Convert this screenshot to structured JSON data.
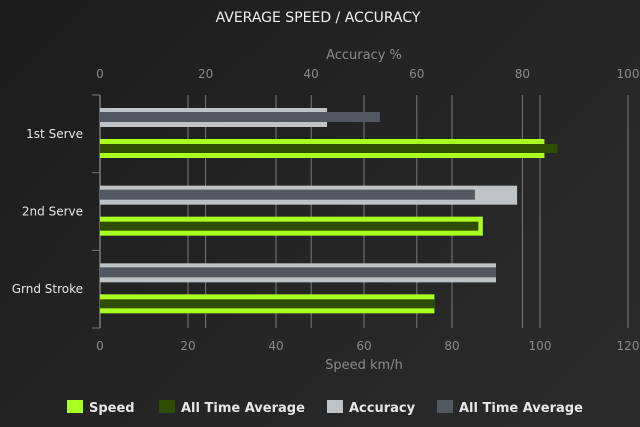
{
  "chart_data": {
    "type": "bar",
    "orientation": "horizontal",
    "title": "AVERAGE SPEED / ACCURACY",
    "categories": [
      "1st Serve",
      "2nd Serve",
      "Grnd Stroke"
    ],
    "top_axis": {
      "label": "Accuracy %",
      "range": [
        0,
        100
      ],
      "ticks": [
        0,
        20,
        40,
        60,
        80,
        100
      ]
    },
    "bottom_axis": {
      "label": "Speed km/h",
      "range": [
        0,
        120
      ],
      "ticks": [
        0,
        20,
        40,
        60,
        80,
        100,
        120
      ]
    },
    "grid": true,
    "legend_placement": "bottom",
    "series": [
      {
        "name": "Speed",
        "axis": "bottom",
        "color": "#aaff22",
        "values": [
          101,
          87,
          76
        ]
      },
      {
        "name": "All Time Average",
        "axis": "bottom",
        "color": "#2f4d00",
        "values": [
          104,
          86,
          76
        ]
      },
      {
        "name": "Accuracy",
        "axis": "top",
        "color": "#bfc3c6",
        "values": [
          43,
          79,
          75
        ]
      },
      {
        "name": "All Time Average",
        "axis": "top",
        "color": "#535860",
        "values": [
          53,
          71,
          75
        ]
      }
    ]
  }
}
